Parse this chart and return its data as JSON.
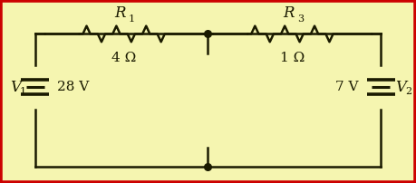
{
  "bg_color": "#f5f5b0",
  "border_color": "#cc0000",
  "line_color": "#1a1a00",
  "line_width": 1.8,
  "fig_width": 4.59,
  "fig_height": 2.02,
  "dpi": 100,
  "R1_label": "R",
  "R1_sub": "1",
  "R1_value": "4 Ω",
  "R3_label": "R",
  "R3_sub": "3",
  "R3_value": "1 Ω",
  "V1_label": "V",
  "V1_sub": "1",
  "V1_value": "28 V",
  "V2_label": "V",
  "V2_sub": "2",
  "V2_value": "7 V"
}
